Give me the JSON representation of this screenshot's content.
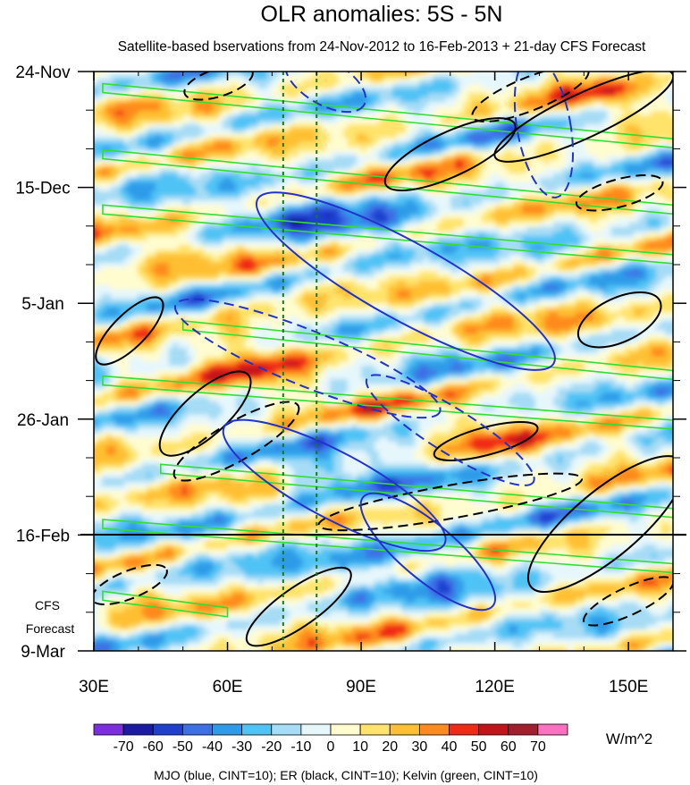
{
  "chart_data": {
    "type": "heatmap",
    "title": "OLR anomalies: 5S - 5N",
    "subtitle": "Satellite-based bservations from 24-Nov-2012 to 16-Feb-2013 + 21-day CFS Forecast",
    "x_axis": {
      "range": [
        30,
        160
      ],
      "tick_values": [
        30,
        60,
        90,
        120,
        150
      ],
      "tick_labels": [
        "30E",
        "60E",
        "90E",
        "120E",
        "150E"
      ]
    },
    "y_axis": {
      "range_days": [
        0,
        105
      ],
      "tick_days": [
        0,
        21,
        42,
        63,
        84,
        105
      ],
      "tick_labels": [
        "24-Nov",
        "15-Dec",
        "5-Jan",
        "26-Jan",
        "16-Feb",
        "9-Mar"
      ],
      "direction": "time increases downward"
    },
    "observation_end_day": 84,
    "forecast_label": [
      "CFS",
      "Forecast"
    ],
    "reference_longitudes": [
      72.5,
      80
    ],
    "colorbar": {
      "unit": "W/m^2",
      "levels": [
        -70,
        -60,
        -50,
        -40,
        -30,
        -20,
        -10,
        0,
        10,
        20,
        30,
        40,
        50,
        60,
        70
      ],
      "colors": [
        "#7b2fe0",
        "#1a1aa6",
        "#1f3fcf",
        "#3d6fe6",
        "#2f9be8",
        "#4fc3f5",
        "#a6dcf5",
        "#e6f7fc",
        "#fffccf",
        "#ffe36b",
        "#ffbf33",
        "#ff8a1f",
        "#f02a14",
        "#c2141a",
        "#a31f2e",
        "#ff70c0"
      ]
    },
    "legend_text": "MJO (blue, CINT=10); ER (black, CINT=10); Kelvin (green, CINT=10)",
    "overlays": {
      "mjo": {
        "color": "#2233cc",
        "solid": [
          {
            "lon": 100,
            "day": 38,
            "rlon": 38,
            "rday": 7,
            "angle": 29
          },
          {
            "lon": 84,
            "day": 75,
            "rlon": 28,
            "rday": 6,
            "angle": 28
          },
          {
            "lon": 105,
            "day": 87,
            "rlon": 19,
            "rday": 5,
            "angle": 40
          }
        ],
        "dashed": [
          {
            "lon": 82,
            "day": 2,
            "rlon": 10,
            "rday": 4,
            "angle": 30
          },
          {
            "lon": 131,
            "day": 10,
            "rlon": 6,
            "rday": 13,
            "angle": -10
          },
          {
            "lon": 78,
            "day": 52,
            "rlon": 32,
            "rday": 5,
            "angle": 22
          },
          {
            "lon": 110,
            "day": 65,
            "rlon": 22,
            "rday": 4,
            "angle": 32
          }
        ]
      },
      "er": {
        "color": "#000000",
        "solid": [
          {
            "lon": 140,
            "day": 8,
            "rlon": 22,
            "rday": 4,
            "angle": -25
          },
          {
            "lon": 110,
            "day": 15,
            "rlon": 16,
            "rday": 4,
            "angle": -25
          },
          {
            "lon": 38,
            "day": 47,
            "rlon": 10,
            "rday": 3,
            "angle": -45
          },
          {
            "lon": 148,
            "day": 45,
            "rlon": 10,
            "rday": 4,
            "angle": -25
          },
          {
            "lon": 55,
            "day": 62,
            "rlon": 13,
            "rday": 4,
            "angle": -42
          },
          {
            "lon": 118,
            "day": 67,
            "rlon": 12,
            "rday": 2.5,
            "angle": -15
          },
          {
            "lon": 145,
            "day": 82,
            "rlon": 22,
            "rday": 6,
            "angle": -40
          },
          {
            "lon": 76,
            "day": 97,
            "rlon": 14,
            "rday": 3.5,
            "angle": -35
          }
        ],
        "dashed": [
          {
            "lon": 58,
            "day": 2,
            "rlon": 8,
            "rday": 2.5,
            "angle": -18
          },
          {
            "lon": 128,
            "day": 4,
            "rlon": 14,
            "rday": 3,
            "angle": -22
          },
          {
            "lon": 148,
            "day": 22,
            "rlon": 10,
            "rday": 2.5,
            "angle": -15
          },
          {
            "lon": 62,
            "day": 67,
            "rlon": 16,
            "rday": 3.5,
            "angle": -30
          },
          {
            "lon": 110,
            "day": 78,
            "rlon": 30,
            "rday": 3,
            "angle": -10
          },
          {
            "lon": 38,
            "day": 93,
            "rlon": 9,
            "rday": 2.5,
            "angle": -22
          },
          {
            "lon": 150,
            "day": 96,
            "rlon": 11,
            "rday": 2.5,
            "angle": -25
          }
        ]
      },
      "kelvin": {
        "color": "#33dd33",
        "bands": [
          {
            "lon0": 32,
            "day0": 3,
            "lon1": 160,
            "day1": 13
          },
          {
            "lon0": 32,
            "day0": 15,
            "lon1": 160,
            "day1": 25
          },
          {
            "lon0": 32,
            "day0": 25,
            "lon1": 160,
            "day1": 34
          },
          {
            "lon0": 50,
            "day0": 46,
            "lon1": 160,
            "day1": 55
          },
          {
            "lon0": 32,
            "day0": 56,
            "lon1": 160,
            "day1": 64
          },
          {
            "lon0": 45,
            "day0": 72,
            "lon1": 160,
            "day1": 80
          },
          {
            "lon0": 32,
            "day0": 82,
            "lon1": 160,
            "day1": 90
          },
          {
            "lon0": 32,
            "day0": 95,
            "lon1": 60,
            "day1": 98
          }
        ]
      }
    }
  }
}
